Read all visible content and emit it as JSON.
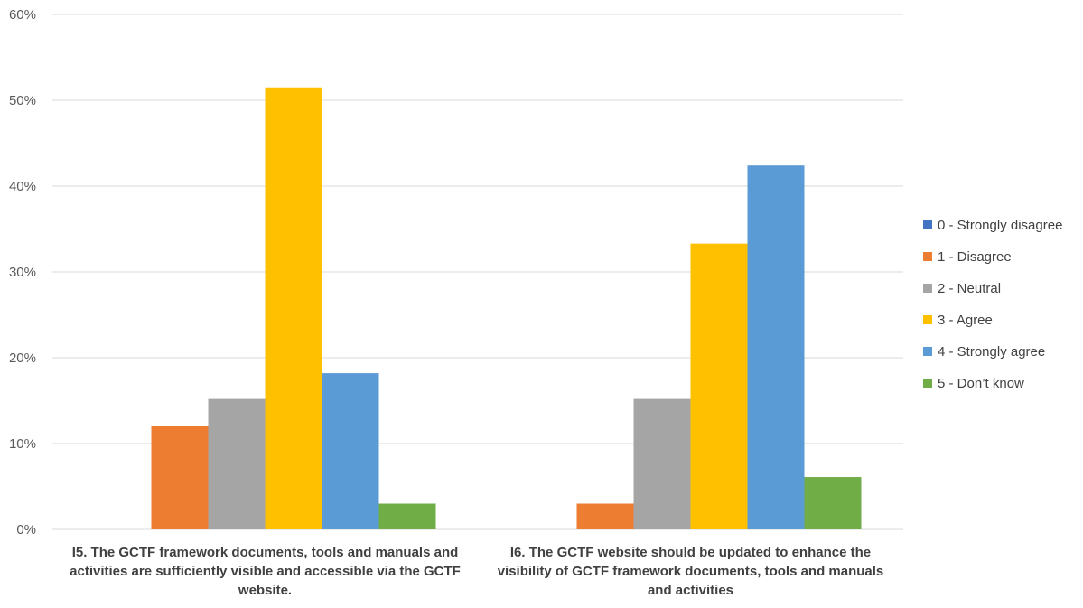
{
  "chart_data": {
    "type": "bar",
    "title": "",
    "xlabel": "",
    "ylabel": "",
    "ylim": [
      0,
      60
    ],
    "y_unit": "%",
    "y_ticks": [
      "0%",
      "10%",
      "20%",
      "30%",
      "40%",
      "50%",
      "60%"
    ],
    "grid": true,
    "legend_position": "right",
    "categories": [
      [
        "I5. The GCTF framework documents, tools and manuals and",
        "activities are sufficiently visible and  accessible via the GCTF",
        "website."
      ],
      [
        "I6. The GCTF website should be updated to enhance the",
        "visibility of GCTF framework documents, tools and manuals",
        "and activities"
      ]
    ],
    "series": [
      {
        "name": "0 - Strongly disagree",
        "color": "#4472c4",
        "values": [
          0,
          0
        ]
      },
      {
        "name": "1 - Disagree",
        "color": "#ed7d31",
        "values": [
          12.1,
          3.0
        ]
      },
      {
        "name": "2 - Neutral",
        "color": "#a5a5a5",
        "values": [
          15.2,
          15.2
        ]
      },
      {
        "name": "3 - Agree",
        "color": "#ffc000",
        "values": [
          51.5,
          33.3
        ]
      },
      {
        "name": "4 - Strongly agree",
        "color": "#5b9bd5",
        "values": [
          18.2,
          42.4
        ]
      },
      {
        "name": "5 - Don’t know",
        "color": "#70ad47",
        "values": [
          3.0,
          6.1
        ]
      }
    ]
  }
}
